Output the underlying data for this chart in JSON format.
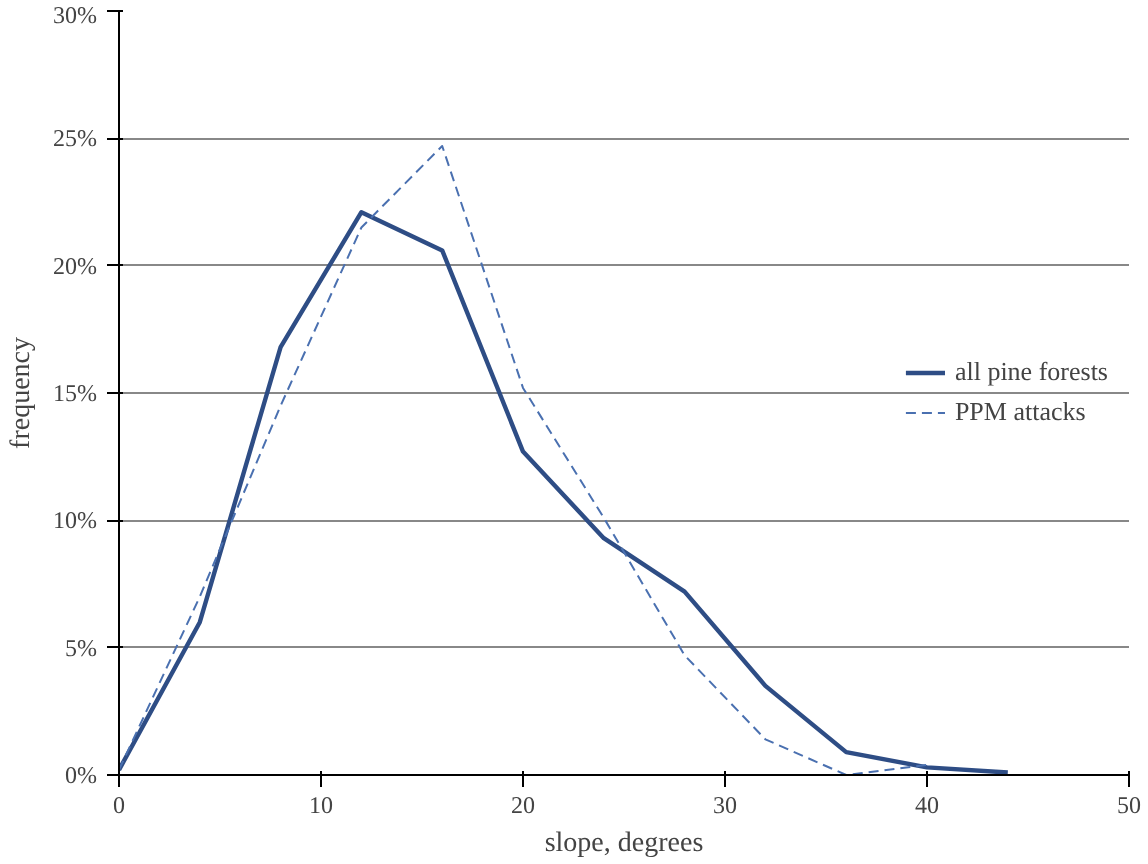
{
  "chart_data": {
    "type": "line",
    "xlabel": "slope, degrees",
    "ylabel": "frequency",
    "x": [
      0,
      4,
      8,
      12,
      16,
      20,
      24,
      28,
      32,
      36,
      40,
      44
    ],
    "series": [
      {
        "name": "all pine forests",
        "color": "#2e4d85",
        "line_style": "solid",
        "values": [
          0.2,
          6.0,
          16.8,
          22.1,
          20.6,
          12.7,
          9.3,
          7.2,
          3.5,
          0.9,
          0.3,
          0.1
        ]
      },
      {
        "name": "PPM attacks",
        "color": "#4a70b0",
        "line_style": "dashed",
        "values": [
          0.2,
          7.0,
          14.5,
          21.5,
          24.7,
          15.2,
          10.1,
          4.7,
          1.4,
          0.0,
          0.4,
          null
        ]
      }
    ],
    "xlim": [
      0,
      50
    ],
    "xticks": [
      0,
      10,
      20,
      30,
      40,
      50
    ],
    "ylim": [
      0,
      30
    ],
    "yticks": [
      {
        "value": 0,
        "label": "0%"
      },
      {
        "value": 5,
        "label": "5%"
      },
      {
        "value": 10,
        "label": "10%"
      },
      {
        "value": 15,
        "label": "15%"
      },
      {
        "value": 20,
        "label": "20%"
      },
      {
        "value": 25,
        "label": "25%"
      },
      {
        "value": 30,
        "label": "30%"
      }
    ],
    "grid": "y",
    "legend": "right",
    "marker": "none"
  }
}
